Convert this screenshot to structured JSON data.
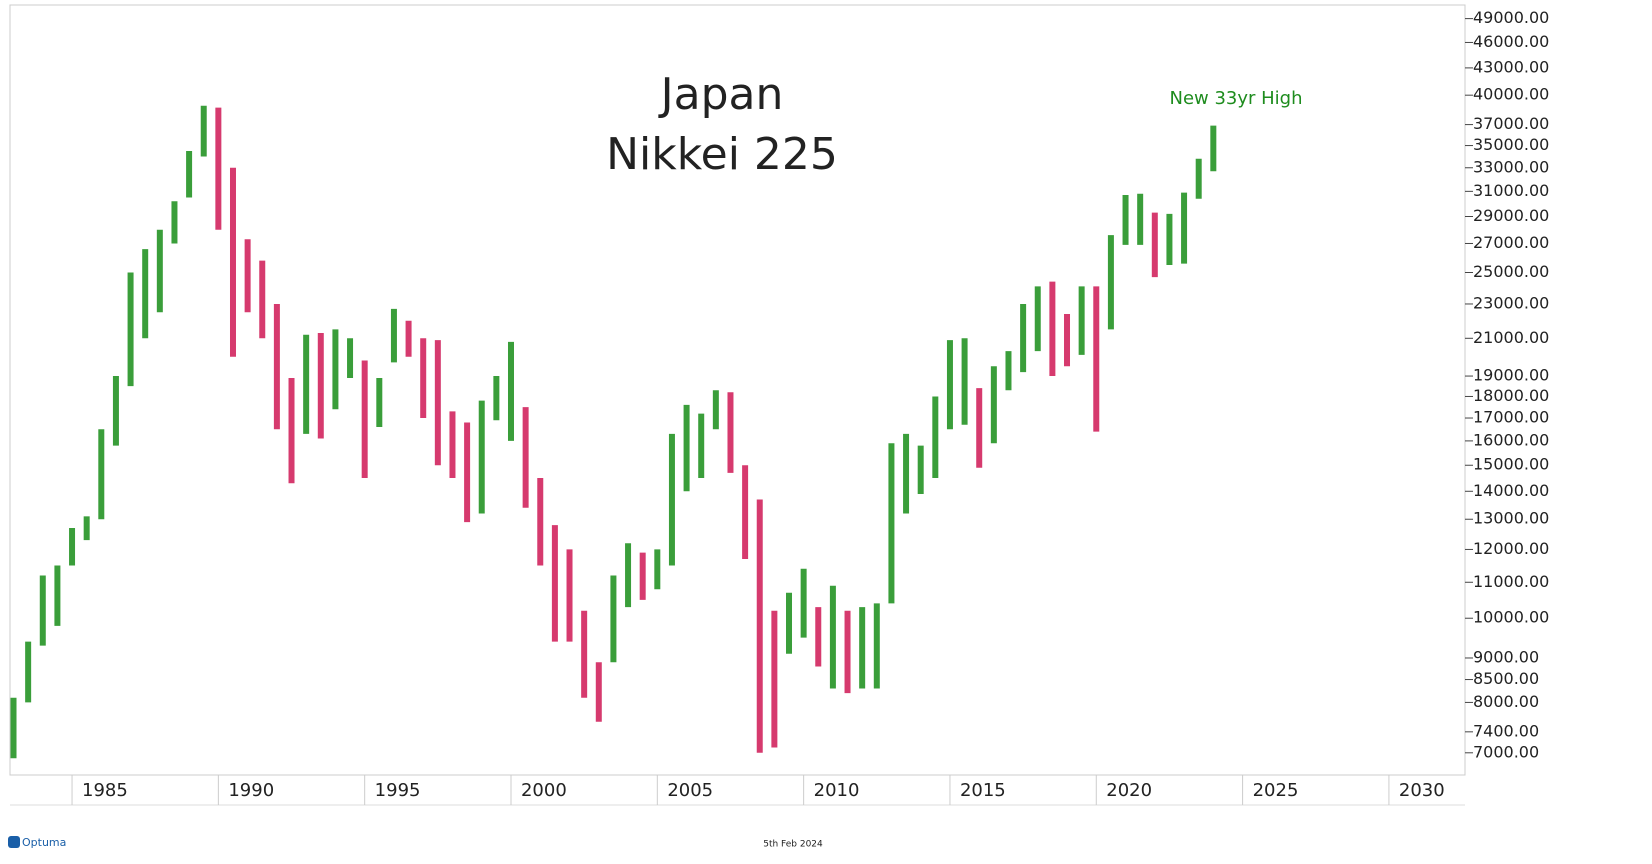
{
  "chart_data": {
    "type": "range_bar",
    "title": "Japan",
    "subtitle": "Nikkei 225",
    "annotation": "New 33yr High",
    "annotation_color": "#1e8c1e",
    "footer": "5th Feb 2024",
    "logo": "Optuma",
    "log_scale": true,
    "up_color": "#3a9e3a",
    "down_color": "#d63a6e",
    "xlim": [
      1982.88,
      2032.6
    ],
    "xticks": [
      1985,
      1990,
      1995,
      2000,
      2005,
      2010,
      2015,
      2020,
      2025,
      2030
    ],
    "ylim": [
      6600,
      50800
    ],
    "yticks": [
      {
        "value": 7000,
        "label": "7000.00"
      },
      {
        "value": 7400,
        "label": "7400.00"
      },
      {
        "value": 8000,
        "label": "8000.00"
      },
      {
        "value": 8500,
        "label": "8500.00"
      },
      {
        "value": 9000,
        "label": "9000.00"
      },
      {
        "value": 10000,
        "label": "10000.00"
      },
      {
        "value": 11000,
        "label": "11000.00"
      },
      {
        "value": 12000,
        "label": "12000.00"
      },
      {
        "value": 13000,
        "label": "13000.00"
      },
      {
        "value": 14000,
        "label": "14000.00"
      },
      {
        "value": 15000,
        "label": "15000.00"
      },
      {
        "value": 16000,
        "label": "16000.00"
      },
      {
        "value": 17000,
        "label": "17000.00"
      },
      {
        "value": 18000,
        "label": "18000.00"
      },
      {
        "value": 19000,
        "label": "19000.00"
      },
      {
        "value": 21000,
        "label": "21000.00"
      },
      {
        "value": 23000,
        "label": "23000.00"
      },
      {
        "value": 25000,
        "label": "25000.00"
      },
      {
        "value": 27000,
        "label": "27000.00"
      },
      {
        "value": 29000,
        "label": "29000.00"
      },
      {
        "value": 31000,
        "label": "31000.00"
      },
      {
        "value": 33000,
        "label": "33000.00"
      },
      {
        "value": 35000,
        "label": "35000.00"
      },
      {
        "value": 37000,
        "label": "37000.00"
      },
      {
        "value": 40000,
        "label": "40000.00"
      },
      {
        "value": 43000,
        "label": "43000.00"
      },
      {
        "value": 46000,
        "label": "46000.00"
      },
      {
        "value": 49000,
        "label": "49000.00"
      }
    ],
    "x": [
      1983.0,
      1983.5,
      1984.0,
      1984.5,
      1985.0,
      1985.5,
      1986.0,
      1986.5,
      1987.0,
      1987.5,
      1988.0,
      1988.5,
      1989.0,
      1989.5,
      1990.0,
      1990.5,
      1991.0,
      1991.5,
      1992.0,
      1992.5,
      1993.0,
      1993.5,
      1994.0,
      1994.5,
      1995.0,
      1995.5,
      1996.0,
      1996.5,
      1997.0,
      1997.5,
      1998.0,
      1998.5,
      1999.0,
      1999.5,
      2000.0,
      2000.5,
      2001.0,
      2001.5,
      2002.0,
      2002.5,
      2003.0,
      2003.5,
      2004.0,
      2004.5,
      2005.0,
      2005.5,
      2006.0,
      2006.5,
      2007.0,
      2007.5,
      2008.0,
      2008.5,
      2009.0,
      2009.5,
      2010.0,
      2010.5,
      2011.0,
      2011.5,
      2012.0,
      2012.5,
      2013.0,
      2013.5,
      2014.0,
      2014.5,
      2015.0,
      2015.5,
      2016.0,
      2016.5,
      2017.0,
      2017.5,
      2018.0,
      2018.5,
      2019.0,
      2019.5,
      2020.0,
      2020.5,
      2021.0,
      2021.5,
      2022.0,
      2022.5,
      2023.0,
      2023.5,
      2024.0
    ],
    "low": [
      6900,
      8000,
      9300,
      9800,
      11500,
      12300,
      13000,
      15800,
      18500,
      21000,
      22500,
      27000,
      30500,
      34000,
      28000,
      20000,
      22500,
      21000,
      16500,
      14300,
      16300,
      16100,
      17400,
      18900,
      14500,
      16600,
      19700,
      20000,
      17000,
      15000,
      14500,
      12900,
      13200,
      16900,
      16000,
      13400,
      11500,
      9400,
      9400,
      8100,
      7600,
      8900,
      10300,
      10500,
      10800,
      11500,
      14000,
      14500,
      16500,
      14700,
      11700,
      7000,
      7100,
      9100,
      9500,
      8800,
      8300,
      8200,
      8300,
      8300,
      10400,
      13200,
      13900,
      14500,
      16500,
      16700,
      14900,
      15900,
      18300,
      19200,
      20300,
      19000,
      19500,
      20100,
      16400,
      21500,
      26900,
      26900,
      24700,
      25500,
      25600,
      30400,
      32700
    ],
    "high": [
      8100,
      9400,
      11200,
      11500,
      12700,
      13100,
      16500,
      19000,
      25000,
      26600,
      28000,
      30200,
      34500,
      38900,
      38700,
      33000,
      27300,
      25800,
      23000,
      18900,
      21200,
      21300,
      21500,
      21000,
      19800,
      18900,
      22700,
      22000,
      21000,
      20900,
      17300,
      16800,
      17800,
      19000,
      20800,
      17500,
      14500,
      12800,
      12000,
      10200,
      8900,
      11200,
      12200,
      11900,
      12000,
      16300,
      17600,
      17200,
      18300,
      18200,
      15000,
      13700,
      10200,
      10700,
      11400,
      10300,
      10900,
      10200,
      10300,
      10400,
      15900,
      16300,
      15800,
      18000,
      20900,
      21000,
      18400,
      19500,
      20300,
      23000,
      24100,
      24400,
      22400,
      24100,
      24100,
      27600,
      30700,
      30800,
      29300,
      29200,
      30900,
      33800,
      36900
    ]
  }
}
